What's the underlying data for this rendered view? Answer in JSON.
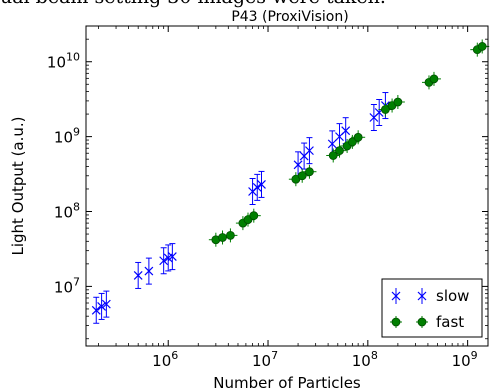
{
  "caption_fragment": "ual beam setting 30 images were taken.",
  "chart_data": {
    "type": "scatter",
    "title": "P43 (ProxiVision)",
    "xlabel": "Number of Particles",
    "ylabel": "Light Output (a.u.)",
    "xscale": "log",
    "yscale": "log",
    "xlim": [
      150000,
      1600000000
    ],
    "ylim": [
      1600000,
      30000000000
    ],
    "x_ticks": [
      {
        "value": 1000000,
        "base": "10",
        "exp": "6"
      },
      {
        "value": 10000000,
        "base": "10",
        "exp": "7"
      },
      {
        "value": 100000000,
        "base": "10",
        "exp": "8"
      },
      {
        "value": 1000000000,
        "base": "10",
        "exp": "9"
      }
    ],
    "y_ticks": [
      {
        "value": 10000000,
        "base": "10",
        "exp": "7"
      },
      {
        "value": 100000000,
        "base": "10",
        "exp": "8"
      },
      {
        "value": 1000000000,
        "base": "10",
        "exp": "9"
      },
      {
        "value": 10000000000,
        "base": "10",
        "exp": "10"
      }
    ],
    "grid": false,
    "legend_position": "bottom-right",
    "series": [
      {
        "name": "slow",
        "color": "#0000ff",
        "marker": "x",
        "points": [
          {
            "x": 190000,
            "y": 4800000
          },
          {
            "x": 215000,
            "y": 5400000
          },
          {
            "x": 240000,
            "y": 5800000
          },
          {
            "x": 500000,
            "y": 14000000
          },
          {
            "x": 640000,
            "y": 16000000
          },
          {
            "x": 900000,
            "y": 22000000
          },
          {
            "x": 1000000,
            "y": 24000000
          },
          {
            "x": 1100000,
            "y": 25000000
          },
          {
            "x": 7000000,
            "y": 185000000
          },
          {
            "x": 7800000,
            "y": 210000000
          },
          {
            "x": 8600000,
            "y": 230000000
          },
          {
            "x": 20000000,
            "y": 420000000
          },
          {
            "x": 23000000,
            "y": 550000000
          },
          {
            "x": 26000000,
            "y": 650000000
          },
          {
            "x": 44000000,
            "y": 800000000
          },
          {
            "x": 52000000,
            "y": 1000000000
          },
          {
            "x": 60000000,
            "y": 1200000000
          },
          {
            "x": 115000000,
            "y": 1800000000
          },
          {
            "x": 130000000,
            "y": 2100000000
          },
          {
            "x": 150000000,
            "y": 2600000000
          }
        ]
      },
      {
        "name": "fast",
        "color": "#007f00",
        "marker": "o",
        "points": [
          {
            "x": 3000000,
            "y": 42000000
          },
          {
            "x": 3500000,
            "y": 45000000
          },
          {
            "x": 4200000,
            "y": 48000000
          },
          {
            "x": 5600000,
            "y": 70000000
          },
          {
            "x": 6300000,
            "y": 78000000
          },
          {
            "x": 7200000,
            "y": 88000000
          },
          {
            "x": 19000000,
            "y": 270000000
          },
          {
            "x": 22000000,
            "y": 300000000
          },
          {
            "x": 26000000,
            "y": 340000000
          },
          {
            "x": 45000000,
            "y": 560000000
          },
          {
            "x": 52000000,
            "y": 650000000
          },
          {
            "x": 62000000,
            "y": 750000000
          },
          {
            "x": 70000000,
            "y": 850000000
          },
          {
            "x": 80000000,
            "y": 980000000
          },
          {
            "x": 150000000,
            "y": 2300000000
          },
          {
            "x": 175000000,
            "y": 2600000000
          },
          {
            "x": 200000000,
            "y": 2900000000
          },
          {
            "x": 410000000,
            "y": 5300000000
          },
          {
            "x": 460000000,
            "y": 5900000000
          },
          {
            "x": 1250000000,
            "y": 14500000000
          },
          {
            "x": 1400000000,
            "y": 16000000000
          }
        ]
      }
    ]
  }
}
